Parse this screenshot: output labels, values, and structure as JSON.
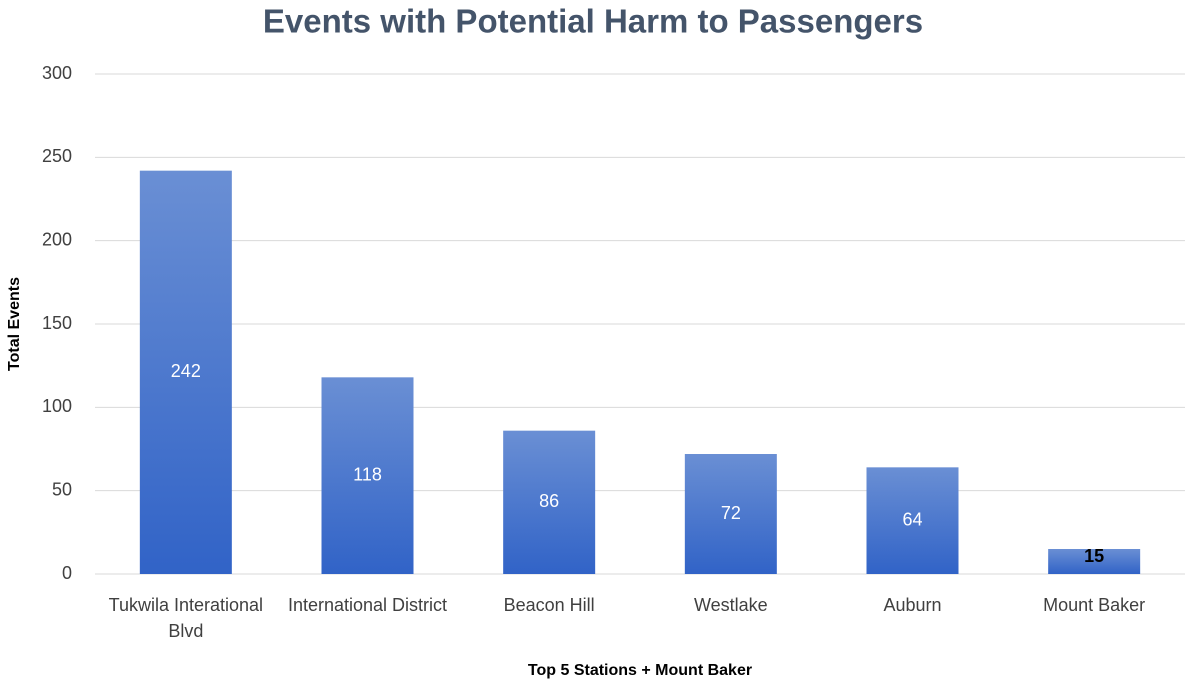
{
  "chart_data": {
    "type": "bar",
    "title": "Events with Potential Harm to Passengers",
    "x_label": "Top 5 Stations + Mount Baker",
    "y_label": "Total Events",
    "categories": [
      "Tukwila Interational Blvd",
      "International District",
      "Beacon Hill",
      "Westlake",
      "Auburn",
      "Mount Baker"
    ],
    "values": [
      242,
      118,
      86,
      72,
      64,
      15
    ],
    "color": "#4472c4",
    "value_label_colors": [
      "#ffffff",
      "#ffffff",
      "#ffffff",
      "#ffffff",
      "#ffffff",
      "#000000"
    ],
    "ylim": [
      0,
      300
    ],
    "yticks": [
      0,
      50,
      100,
      150,
      200,
      250,
      300
    ],
    "grid": true
  }
}
